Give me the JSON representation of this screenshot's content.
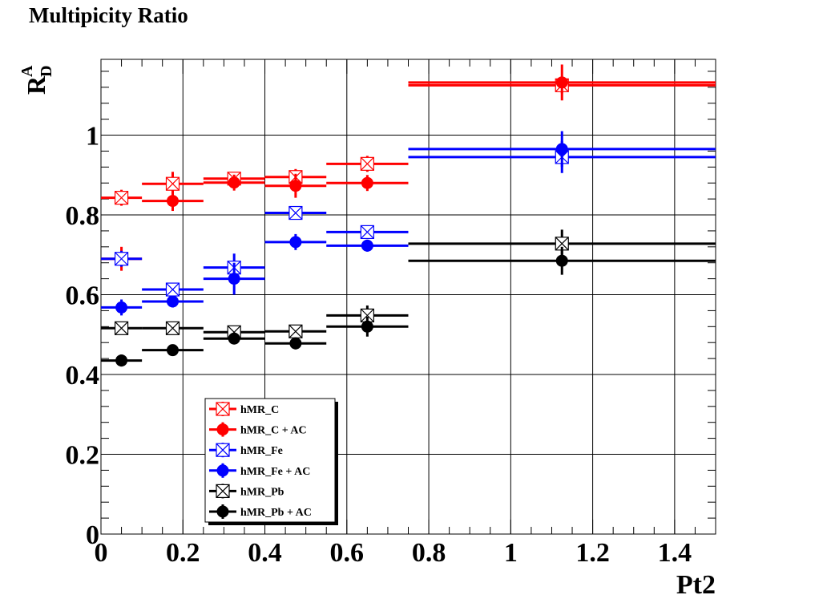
{
  "chart_data": {
    "type": "scatter",
    "title": "Multipicity Ratio",
    "xlabel": "Pt2",
    "ylabel_main": "R",
    "ylabel_sup": "A",
    "ylabel_sub": "D",
    "xlim": [
      0,
      1.5
    ],
    "ylim": [
      0,
      1.19
    ],
    "xticks": [
      0,
      0.2,
      0.4,
      0.6,
      0.8,
      1,
      1.2,
      1.4
    ],
    "xtick_labels": [
      "0",
      "0.2",
      "0.4",
      "0.6",
      "0.8",
      "1",
      "1.2",
      "1.4"
    ],
    "yticks": [
      0,
      0.2,
      0.4,
      0.6,
      0.8,
      1
    ],
    "ytick_labels": [
      "0",
      "0.2",
      "0.4",
      "0.6",
      "0.8",
      "1"
    ],
    "grid": true,
    "legend_position": "bottom-left",
    "series": [
      {
        "name": "hMR_C",
        "color": "#ff0000",
        "marker": "open-square-x",
        "points": [
          {
            "x": 0.05,
            "xlo": 0.0,
            "xhi": 0.1,
            "y": 0.843,
            "yerr": 0.02
          },
          {
            "x": 0.175,
            "xlo": 0.1,
            "xhi": 0.25,
            "y": 0.878,
            "yerr": 0.03
          },
          {
            "x": 0.325,
            "xlo": 0.25,
            "xhi": 0.4,
            "y": 0.891,
            "yerr": 0.015
          },
          {
            "x": 0.475,
            "xlo": 0.4,
            "xhi": 0.55,
            "y": 0.895,
            "yerr": 0.02
          },
          {
            "x": 0.65,
            "xlo": 0.55,
            "xhi": 0.75,
            "y": 0.928,
            "yerr": 0.02
          },
          {
            "x": 1.125,
            "xlo": 0.75,
            "xhi": 1.5,
            "y": 1.125,
            "yerr": 0.02
          }
        ]
      },
      {
        "name": "hMR_C + AC",
        "color": "#ff0000",
        "marker": "filled-circle",
        "points": [
          {
            "x": 0.05,
            "xlo": 0.0,
            "xhi": 0.1,
            "y": 0.69,
            "yerr": 0.03
          },
          {
            "x": 0.175,
            "xlo": 0.1,
            "xhi": 0.25,
            "y": 0.835,
            "yerr": 0.025
          },
          {
            "x": 0.325,
            "xlo": 0.25,
            "xhi": 0.4,
            "y": 0.881,
            "yerr": 0.02
          },
          {
            "x": 0.475,
            "xlo": 0.4,
            "xhi": 0.55,
            "y": 0.873,
            "yerr": 0.03
          },
          {
            "x": 0.65,
            "xlo": 0.55,
            "xhi": 0.75,
            "y": 0.88,
            "yerr": 0.02
          },
          {
            "x": 1.125,
            "xlo": 0.75,
            "xhi": 1.5,
            "y": 1.132,
            "yerr": 0.045
          }
        ]
      },
      {
        "name": "hMR_Fe",
        "color": "#0000ff",
        "marker": "open-square-x",
        "points": [
          {
            "x": 0.05,
            "xlo": 0.0,
            "xhi": 0.1,
            "y": 0.69,
            "yerr": 0.02
          },
          {
            "x": 0.175,
            "xlo": 0.1,
            "xhi": 0.25,
            "y": 0.613,
            "yerr": 0.015
          },
          {
            "x": 0.325,
            "xlo": 0.25,
            "xhi": 0.4,
            "y": 0.668,
            "yerr": 0.035
          },
          {
            "x": 0.475,
            "xlo": 0.4,
            "xhi": 0.55,
            "y": 0.805,
            "yerr": 0.01
          },
          {
            "x": 0.65,
            "xlo": 0.55,
            "xhi": 0.75,
            "y": 0.757,
            "yerr": 0.01
          },
          {
            "x": 1.125,
            "xlo": 0.75,
            "xhi": 1.5,
            "y": 0.945,
            "yerr": 0.04
          }
        ]
      },
      {
        "name": "hMR_Fe + AC",
        "color": "#0000ff",
        "marker": "filled-circle",
        "points": [
          {
            "x": 0.05,
            "xlo": 0.0,
            "xhi": 0.1,
            "y": 0.568,
            "yerr": 0.02
          },
          {
            "x": 0.175,
            "xlo": 0.1,
            "xhi": 0.25,
            "y": 0.583,
            "yerr": 0.015
          },
          {
            "x": 0.325,
            "xlo": 0.25,
            "xhi": 0.4,
            "y": 0.64,
            "yerr": 0.04
          },
          {
            "x": 0.475,
            "xlo": 0.4,
            "xhi": 0.55,
            "y": 0.732,
            "yerr": 0.02
          },
          {
            "x": 0.65,
            "xlo": 0.55,
            "xhi": 0.75,
            "y": 0.723,
            "yerr": 0.015
          },
          {
            "x": 1.125,
            "xlo": 0.75,
            "xhi": 1.5,
            "y": 0.965,
            "yerr": 0.045
          }
        ]
      },
      {
        "name": "hMR_Pb",
        "color": "#000000",
        "marker": "open-square-x",
        "points": [
          {
            "x": 0.05,
            "xlo": 0.0,
            "xhi": 0.1,
            "y": 0.516,
            "yerr": 0.01
          },
          {
            "x": 0.175,
            "xlo": 0.1,
            "xhi": 0.25,
            "y": 0.516,
            "yerr": 0.01
          },
          {
            "x": 0.325,
            "xlo": 0.25,
            "xhi": 0.4,
            "y": 0.506,
            "yerr": 0.01
          },
          {
            "x": 0.475,
            "xlo": 0.4,
            "xhi": 0.55,
            "y": 0.508,
            "yerr": 0.015
          },
          {
            "x": 0.65,
            "xlo": 0.55,
            "xhi": 0.75,
            "y": 0.548,
            "yerr": 0.025
          },
          {
            "x": 1.125,
            "xlo": 0.75,
            "xhi": 1.5,
            "y": 0.728,
            "yerr": 0.035
          }
        ]
      },
      {
        "name": "hMR_Pb + AC",
        "color": "#000000",
        "marker": "filled-circle",
        "points": [
          {
            "x": 0.05,
            "xlo": 0.0,
            "xhi": 0.1,
            "y": 0.435,
            "yerr": 0.015
          },
          {
            "x": 0.175,
            "xlo": 0.1,
            "xhi": 0.25,
            "y": 0.461,
            "yerr": 0.01
          },
          {
            "x": 0.325,
            "xlo": 0.25,
            "xhi": 0.4,
            "y": 0.49,
            "yerr": 0.01
          },
          {
            "x": 0.475,
            "xlo": 0.4,
            "xhi": 0.55,
            "y": 0.478,
            "yerr": 0.015
          },
          {
            "x": 0.65,
            "xlo": 0.55,
            "xhi": 0.75,
            "y": 0.52,
            "yerr": 0.025
          },
          {
            "x": 1.125,
            "xlo": 0.75,
            "xhi": 1.5,
            "y": 0.685,
            "yerr": 0.035
          }
        ]
      }
    ]
  }
}
